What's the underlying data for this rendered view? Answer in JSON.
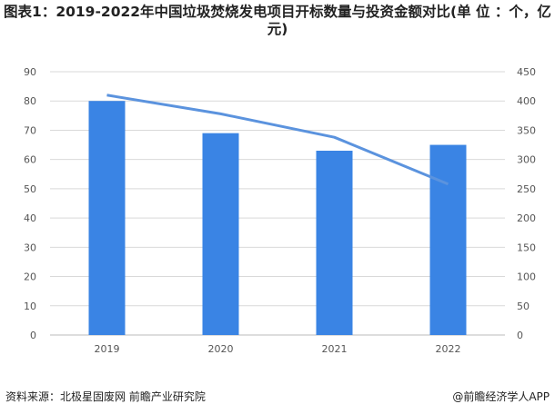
{
  "title": "图表1：2019-2022年中国垃圾焚烧发电项目开标数量与投资金额对比(单 位 ：个，亿元)",
  "footer": {
    "source": "资料来源：北极星固废网 前瞻产业研究院",
    "brand": "@前瞻经济学人APP"
  },
  "chart_data": {
    "type": "bar+line",
    "title": "图表1：2019-2022年中国垃圾焚烧发电项目开标数量与投资金额对比(单 位 ：个，亿元)",
    "categories": [
      "2019",
      "2020",
      "2021",
      "2022"
    ],
    "series": [
      {
        "type": "bar",
        "axis": "left",
        "values": [
          80,
          69,
          63,
          65
        ],
        "color": "#3a84e4"
      },
      {
        "type": "line",
        "axis": "right",
        "values": [
          410,
          378,
          338,
          258
        ],
        "color": "#5b93de"
      }
    ],
    "ylim_left": [
      0,
      90
    ],
    "yticks_left": [
      "0",
      "10",
      "20",
      "30",
      "40",
      "50",
      "60",
      "70",
      "80",
      "90"
    ],
    "ylim_right": [
      0,
      450
    ],
    "yticks_right": [
      "0",
      "50",
      "100",
      "150",
      "200",
      "250",
      "300",
      "350",
      "400",
      "450"
    ],
    "grid": true
  }
}
